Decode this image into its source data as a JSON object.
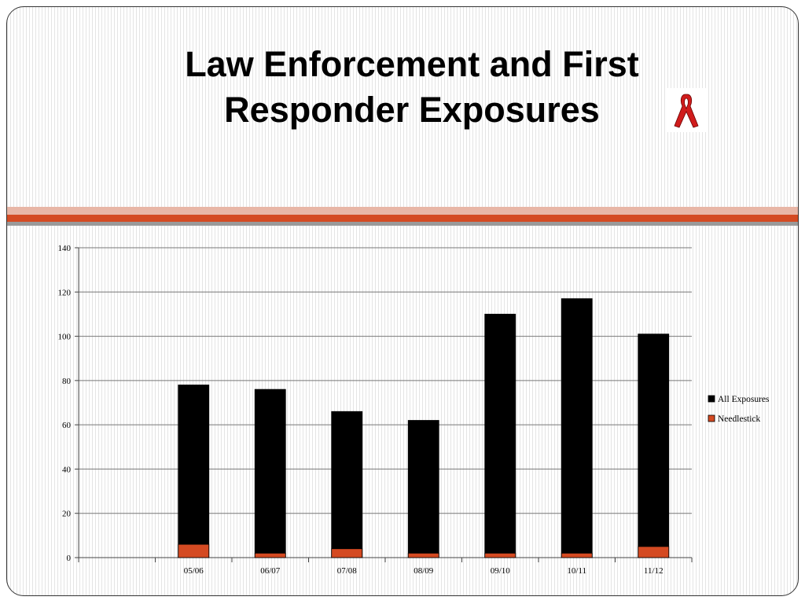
{
  "slide": {
    "title_line1": "Law Enforcement and First",
    "title_line2": "Responder Exposures",
    "ribbon_icon": "awareness-ribbon-icon",
    "accent_color": "#d44a22"
  },
  "chart_data": {
    "type": "bar",
    "title": "",
    "xlabel": "",
    "ylabel": "",
    "categories": [
      "",
      "05/06",
      "06/07",
      "07/08",
      "08/09",
      "09/10",
      "10/11",
      "11/12"
    ],
    "series": [
      {
        "name": "All Exposures",
        "color": "#000000",
        "values": [
          null,
          78,
          76,
          66,
          62,
          110,
          117,
          101
        ]
      },
      {
        "name": "Needlestick",
        "color": "#d44a22",
        "values": [
          null,
          6,
          2,
          4,
          2,
          2,
          2,
          5
        ]
      }
    ],
    "ylim": [
      0,
      140
    ],
    "yticks": [
      0,
      20,
      40,
      60,
      80,
      100,
      120,
      140
    ],
    "grid": true,
    "legend": "right"
  }
}
